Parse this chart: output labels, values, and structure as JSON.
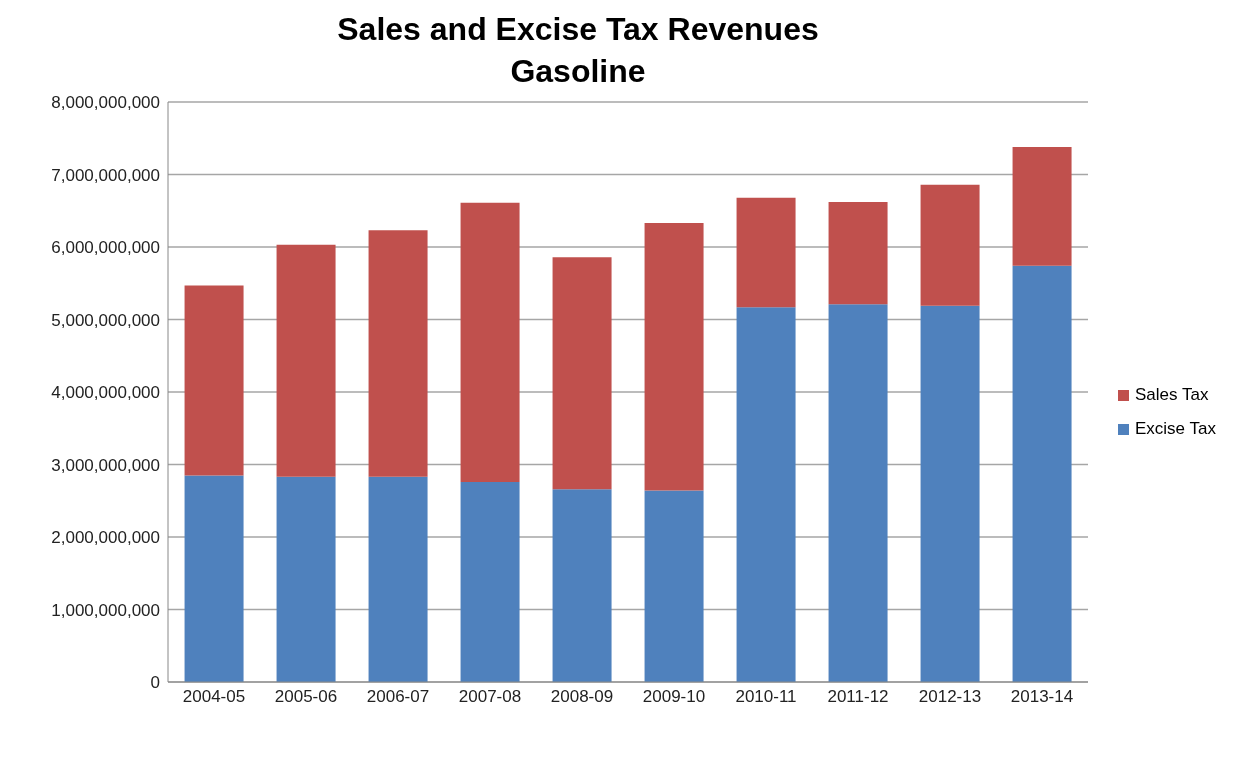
{
  "chart_data": {
    "type": "bar",
    "title": "Sales and Excise Tax Revenues",
    "subtitle": "Gasoline",
    "categories": [
      "2004-05",
      "2005-06",
      "2006-07",
      "2007-08",
      "2008-09",
      "2009-10",
      "2010-11",
      "2011-12",
      "2012-13",
      "2013-14"
    ],
    "stacked": true,
    "series": [
      {
        "name": "Excise Tax",
        "color": "#4f81bd",
        "values": [
          2850000000,
          2830000000,
          2830000000,
          2760000000,
          2660000000,
          2640000000,
          5170000000,
          5210000000,
          5190000000,
          5740000000
        ]
      },
      {
        "name": "Sales Tax",
        "color": "#c0504d",
        "values": [
          2620000000,
          3200000000,
          3400000000,
          3850000000,
          3200000000,
          3690000000,
          1510000000,
          1410000000,
          1670000000,
          1640000000
        ]
      }
    ],
    "ylim": [
      0,
      8000000000
    ],
    "yticks": [
      0,
      {
        "value": 1000000000,
        "label": "1,000,000,000"
      },
      {
        "value": 2000000000,
        "label": "2,000,000,000"
      },
      {
        "value": 3000000000,
        "label": "3,000,000,000"
      },
      {
        "value": 4000000000,
        "label": "4,000,000,000"
      },
      {
        "value": 5000000000,
        "label": "5,000,000,000"
      },
      {
        "value": 6000000000,
        "label": "6,000,000,000"
      },
      {
        "value": 7000000000,
        "label": "7,000,000,000"
      },
      {
        "value": 8000000000,
        "label": "8,000,000,000"
      }
    ],
    "grid": "y",
    "legend": "right"
  }
}
